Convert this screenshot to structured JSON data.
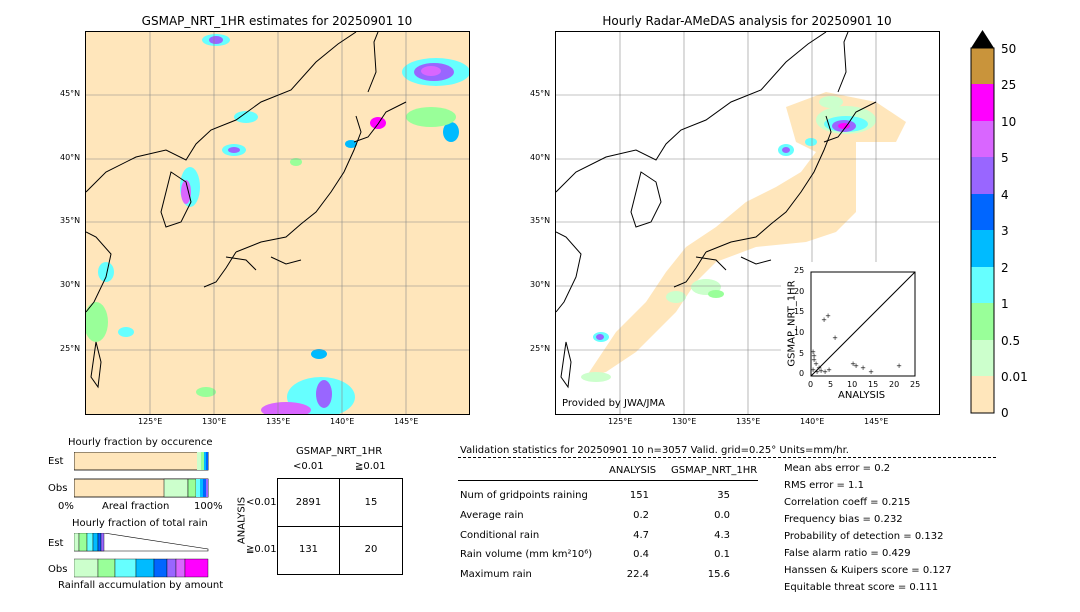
{
  "left_map": {
    "title": "GSMAP_NRT_1HR estimates for 20250901 10",
    "lon_labels": [
      "125°E",
      "130°E",
      "135°E",
      "140°E",
      "145°E"
    ],
    "lat_labels": [
      "45°N",
      "40°N",
      "35°N",
      "30°N",
      "25°N"
    ]
  },
  "right_map": {
    "title": "Hourly Radar-AMeDAS analysis for 20250901 10",
    "lon_labels": [
      "125°E",
      "130°E",
      "135°E",
      "140°E",
      "145°E"
    ],
    "lat_labels": [
      "45°N",
      "40°N",
      "35°N",
      "30°N",
      "25°N"
    ],
    "credit": "Provided by JWA/JMA",
    "scatter": {
      "ylabel": "GSMAP_NRT_1HR",
      "xlabel": "ANALYSIS",
      "ticks": [
        "0",
        "5",
        "10",
        "15",
        "20",
        "25"
      ]
    }
  },
  "colorbar": {
    "labels": [
      "50",
      "25",
      "10",
      "5",
      "4",
      "3",
      "2",
      "1",
      "0.5",
      "0.01",
      "0"
    ],
    "colors": [
      "#c9943b",
      "#ff00ff",
      "#d966ff",
      "#9966ff",
      "#0066ff",
      "#00bbff",
      "#66ffff",
      "#99ff99",
      "#ccffcc",
      "#ffe6bb"
    ]
  },
  "occurrence": {
    "title": "Hourly fraction by occurence",
    "rows": [
      "Est",
      "Obs"
    ],
    "xlabels": [
      "0%",
      "Areal fraction",
      "100%"
    ]
  },
  "total_rain": {
    "title": "Hourly fraction of total rain",
    "rows": [
      "Est",
      "Obs"
    ],
    "xlabel": "Rainfall accumulation by amount"
  },
  "contingency": {
    "title": "GSMAP_NRT_1HR",
    "col_headers": [
      "<0.01",
      "≧0.01"
    ],
    "row_axis": "ANALYSIS",
    "row_headers": [
      "<0.01",
      "≧0.01"
    ],
    "cells": [
      [
        "2891",
        "15"
      ],
      [
        "131",
        "20"
      ]
    ]
  },
  "validation": {
    "header": "Validation statistics for 20250901 10  n=3057 Valid. grid=0.25° Units=mm/hr.",
    "col_analysis": "ANALYSIS",
    "col_gsmap": "GSMAP_NRT_1HR",
    "rows": [
      {
        "label": "Num of gridpoints raining",
        "analysis": "151",
        "gsmap": "35"
      },
      {
        "label": "Average rain",
        "analysis": "0.2",
        "gsmap": "0.0"
      },
      {
        "label": "Conditional rain",
        "analysis": "4.7",
        "gsmap": "4.3"
      },
      {
        "label": "Rain volume (mm km²10⁶)",
        "analysis": "0.4",
        "gsmap": "0.1"
      },
      {
        "label": "Maximum rain",
        "analysis": "22.4",
        "gsmap": "15.6"
      }
    ],
    "scores": [
      "Mean abs error =    0.2",
      "RMS error =    1.1",
      "Correlation coeff =  0.215",
      "Frequency bias =  0.232",
      "Probability of detection =  0.132",
      "False alarm ratio =  0.429",
      "Hanssen & Kuipers score =  0.127",
      "Equitable threat score =  0.111"
    ]
  }
}
